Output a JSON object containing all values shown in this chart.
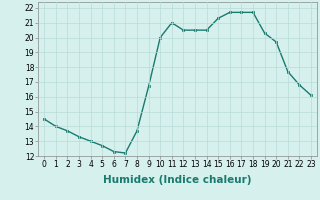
{
  "x": [
    0,
    1,
    2,
    3,
    4,
    5,
    6,
    7,
    8,
    9,
    10,
    11,
    12,
    13,
    14,
    15,
    16,
    17,
    18,
    19,
    20,
    21,
    22,
    23
  ],
  "y": [
    14.5,
    14.0,
    13.7,
    13.3,
    13.0,
    12.7,
    12.3,
    12.2,
    13.7,
    16.7,
    20.0,
    21.0,
    20.5,
    20.5,
    20.5,
    21.3,
    21.7,
    21.7,
    21.7,
    20.3,
    19.7,
    17.7,
    16.8,
    16.1
  ],
  "line_color": "#1a7a6e",
  "marker": "s",
  "marker_size": 2,
  "bg_color": "#d6f0ee",
  "grid_color": "#b8dbd8",
  "xlabel": "Humidex (Indice chaleur)",
  "xlim": [
    -0.5,
    23.5
  ],
  "ylim": [
    12,
    22.4
  ],
  "yticks": [
    12,
    13,
    14,
    15,
    16,
    17,
    18,
    19,
    20,
    21,
    22
  ],
  "xticks": [
    0,
    1,
    2,
    3,
    4,
    5,
    6,
    7,
    8,
    9,
    10,
    11,
    12,
    13,
    14,
    15,
    16,
    17,
    18,
    19,
    20,
    21,
    22,
    23
  ],
  "tick_label_fontsize": 5.5,
  "xlabel_fontsize": 7.5,
  "line_width": 1.0
}
